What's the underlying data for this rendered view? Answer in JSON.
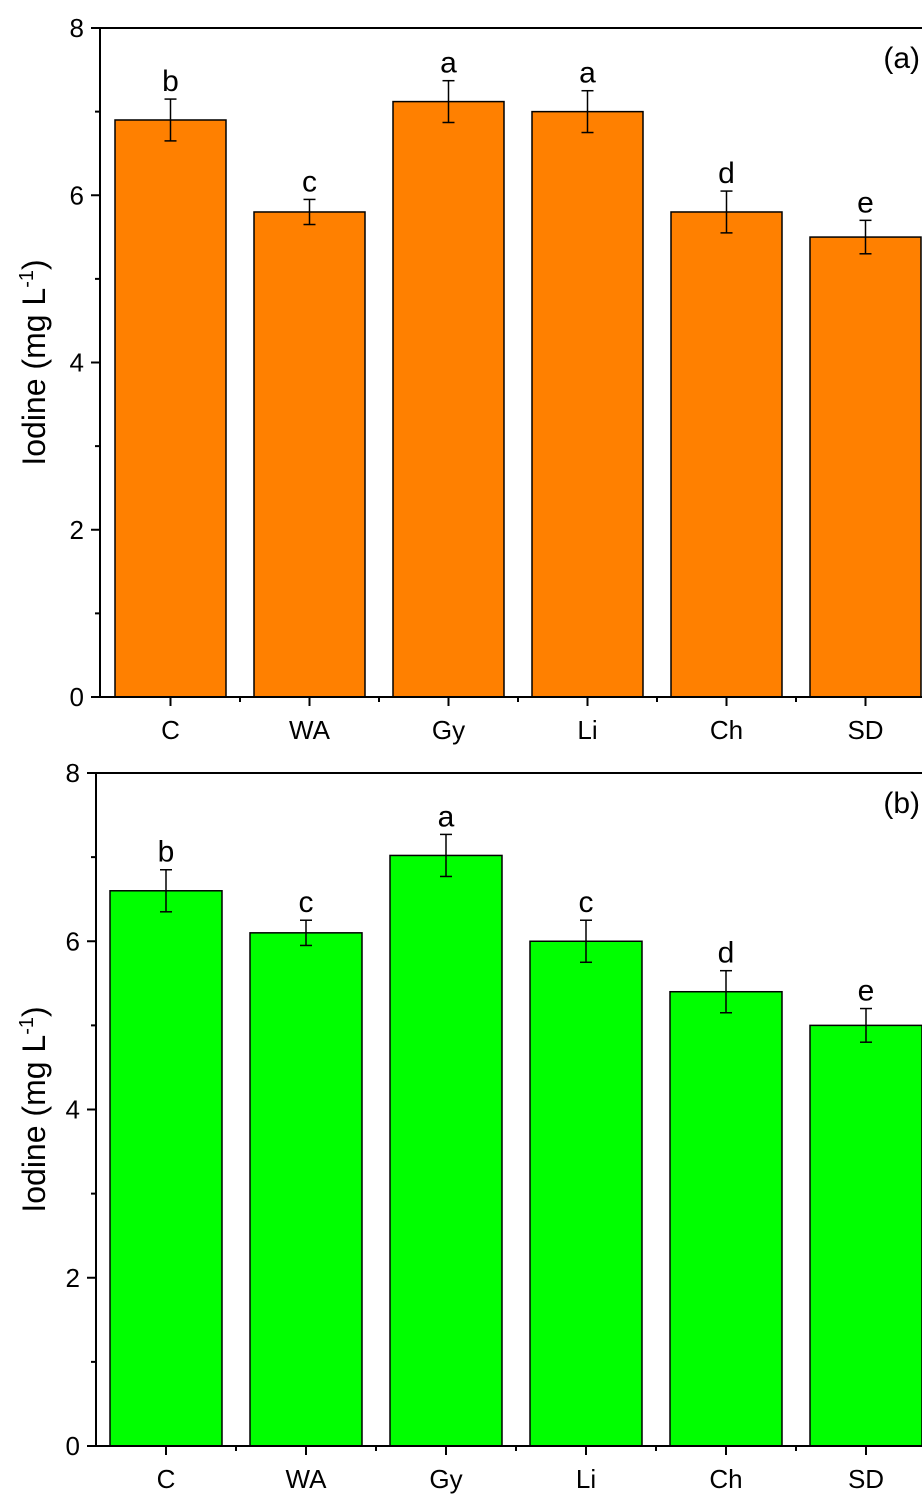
{
  "chart_data": [
    {
      "type": "bar",
      "panel_label": "(a)",
      "categories": [
        "C",
        "WA",
        "Gy",
        "Li",
        "Ch",
        "SD"
      ],
      "values": [
        6.9,
        5.8,
        7.12,
        7.0,
        5.8,
        5.5
      ],
      "errors": [
        0.25,
        0.15,
        0.25,
        0.25,
        0.25,
        0.2
      ],
      "significance": [
        "b",
        "c",
        "a",
        "a",
        "d",
        "e"
      ],
      "ylabel": {
        "main": "Iodine (mg L",
        "sup": "-1",
        "close": ")"
      },
      "xlabel": "",
      "ylim": [
        0,
        8
      ],
      "yticks": [
        0,
        2,
        4,
        6,
        8
      ],
      "bar_color": "#ff8000",
      "grid": false
    },
    {
      "type": "bar",
      "panel_label": "(b)",
      "categories": [
        "C",
        "WA",
        "Gy",
        "Li",
        "Ch",
        "SD"
      ],
      "values": [
        6.6,
        6.1,
        7.02,
        6.0,
        5.4,
        5.0
      ],
      "errors": [
        0.25,
        0.15,
        0.25,
        0.25,
        0.25,
        0.2
      ],
      "significance": [
        "b",
        "c",
        "a",
        "c",
        "d",
        "e"
      ],
      "ylabel": {
        "main": "Iodine (mg L",
        "sup": "-1",
        "close": ")"
      },
      "xlabel": "",
      "ylim": [
        0,
        8
      ],
      "yticks": [
        0,
        2,
        4,
        6,
        8
      ],
      "bar_color": "#00ff00",
      "grid": false
    }
  ]
}
